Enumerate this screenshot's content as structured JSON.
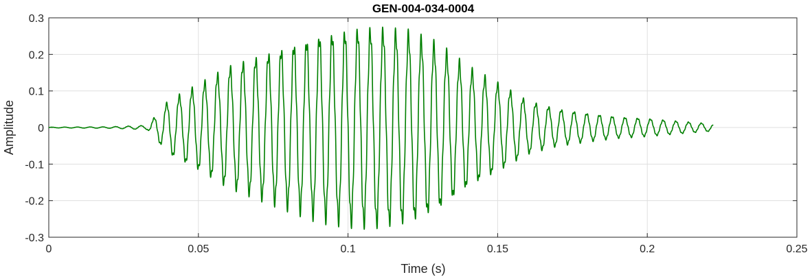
{
  "chart_data": {
    "type": "line",
    "title": "GEN-004-034-0004",
    "xlabel": "Time (s)",
    "ylabel": "Amplitude",
    "xlim": [
      0,
      0.25
    ],
    "ylim": [
      -0.3,
      0.3
    ],
    "x_ticks": [
      "0",
      "0.05",
      "0.1",
      "0.15",
      "0.2",
      "0.25"
    ],
    "y_ticks": [
      "0.3",
      "0.2",
      "0.1",
      "0",
      "-0.1",
      "-0.2",
      "-0.3"
    ],
    "grid": true,
    "line_color": "#007f00",
    "series": [
      {
        "x": [
          0,
          0.02,
          0.033,
          0.04,
          0.05,
          0.06,
          0.07,
          0.08,
          0.09,
          0.1,
          0.105,
          0.11,
          0.12,
          0.13,
          0.14,
          0.15,
          0.16,
          0.17,
          0.18,
          0.19,
          0.2,
          0.21,
          0.222
        ],
        "envelope": [
          0.001,
          0.002,
          0.006,
          0.075,
          0.12,
          0.17,
          0.2,
          0.23,
          0.26,
          0.275,
          0.28,
          0.28,
          0.27,
          0.235,
          0.17,
          0.125,
          0.075,
          0.052,
          0.04,
          0.03,
          0.025,
          0.018,
          0.01
        ]
      }
    ]
  }
}
